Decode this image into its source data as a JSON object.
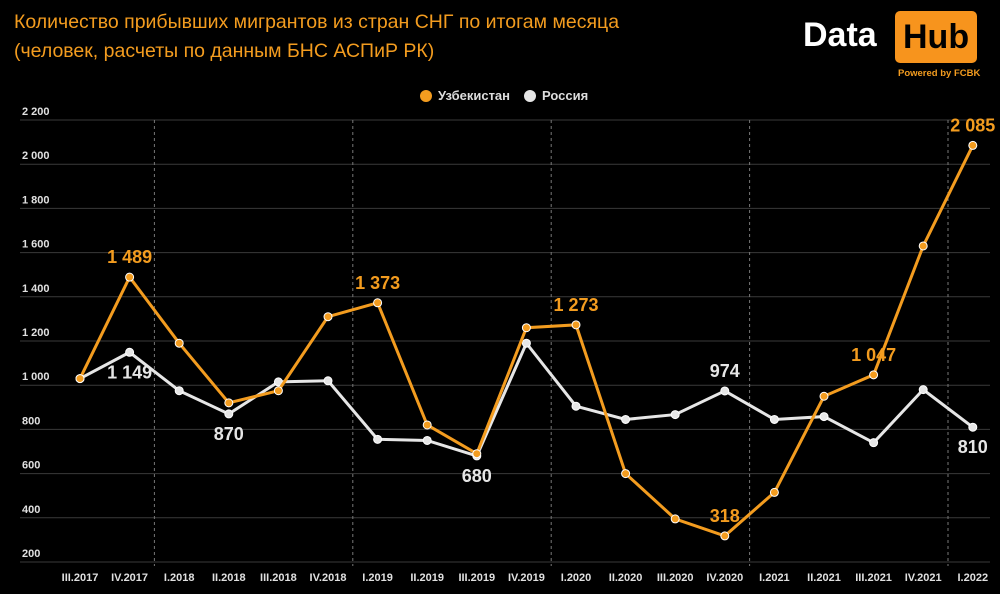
{
  "header": {
    "title_line1": "Количество прибывших мигрантов из стран СНГ по итогам месяца",
    "title_line2": "(человек, расчеты по данным БНС АСПиР РК)"
  },
  "logo": {
    "data": "Data",
    "hub": "Hub",
    "powered": "Powered by FCBK"
  },
  "chart_data": {
    "type": "line",
    "title": "Количество прибывших мигрантов из стран СНГ по итогам месяца (человек, расчеты по данным БНС АСПиР РК)",
    "categories": [
      "III.2017",
      "IV.2017",
      "I.2018",
      "II.2018",
      "III.2018",
      "IV.2018",
      "I.2019",
      "II.2019",
      "III.2019",
      "IV.2019",
      "I.2020",
      "II.2020",
      "III.2020",
      "IV.2020",
      "I.2021",
      "II.2021",
      "III.2021",
      "IV.2021",
      "I.2022"
    ],
    "ylim": [
      200,
      2200
    ],
    "yticks": [
      200,
      400,
      600,
      800,
      1000,
      1200,
      1400,
      1600,
      1800,
      2000,
      2200
    ],
    "ytick_labels": [
      "200",
      "400",
      "600",
      "800",
      "1 000",
      "1 200",
      "1 400",
      "1 600",
      "1 800",
      "2 000",
      "2 200"
    ],
    "grid": true,
    "legend_position": "top-center",
    "series": [
      {
        "name": "Узбекистан",
        "color": "#f39c1f",
        "values": [
          1030,
          1489,
          1190,
          920,
          975,
          1310,
          1373,
          820,
          690,
          1260,
          1273,
          600,
          395,
          318,
          515,
          950,
          1047,
          1630,
          2085
        ],
        "labels": {
          "1": "1 489",
          "6": "1 373",
          "10": "1 273",
          "13": "318",
          "16": "1 047",
          "18": "2 085"
        }
      },
      {
        "name": "Россия",
        "color": "#e6e6e6",
        "values": [
          1030,
          1149,
          975,
          870,
          1015,
          1020,
          755,
          750,
          680,
          1190,
          905,
          845,
          867,
          974,
          845,
          858,
          740,
          980,
          810
        ],
        "labels": {
          "1": "1 149",
          "3": "870",
          "8": "680",
          "13": "974",
          "18": "810"
        }
      }
    ]
  }
}
